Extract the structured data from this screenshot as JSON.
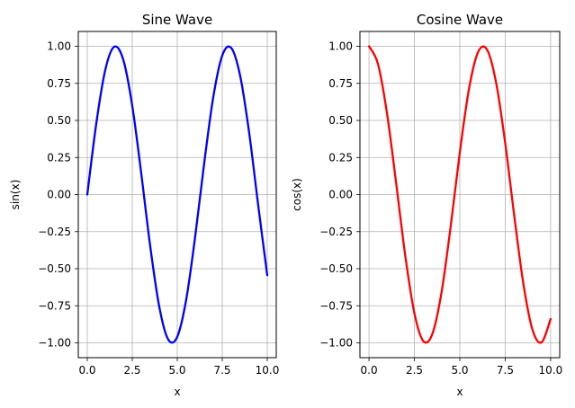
{
  "chart_data": [
    {
      "type": "line",
      "title": "Sine Wave",
      "xlabel": "x",
      "ylabel": "sin(x)",
      "xlim": [
        -0.5,
        10.5
      ],
      "ylim": [
        -1.1,
        1.1
      ],
      "grid": true,
      "x_ticks": [
        0.0,
        2.5,
        5.0,
        7.5,
        10.0
      ],
      "x_tick_labels": [
        "0.0",
        "2.5",
        "5.0",
        "7.5",
        "10.0"
      ],
      "y_ticks": [
        1.0,
        0.75,
        0.5,
        0.25,
        0.0,
        -0.25,
        -0.5,
        -0.75,
        -1.0
      ],
      "y_tick_labels": [
        "1.00",
        "0.75",
        "0.50",
        "0.25",
        "0.00",
        "−0.25",
        "−0.50",
        "−0.75",
        "−1.00"
      ],
      "series": [
        {
          "name": "sin(x)",
          "color": "#0000ff",
          "x": [
            0.0,
            0.5,
            1.0,
            1.5,
            2.0,
            2.5,
            3.0,
            3.5,
            4.0,
            4.5,
            5.0,
            5.5,
            6.0,
            6.5,
            7.0,
            7.5,
            8.0,
            8.5,
            9.0,
            9.5,
            10.0
          ],
          "y": [
            0.0,
            0.479,
            0.841,
            0.997,
            0.909,
            0.598,
            0.141,
            -0.351,
            -0.757,
            -0.978,
            -0.959,
            -0.706,
            -0.279,
            0.215,
            0.657,
            0.938,
            0.989,
            0.798,
            0.412,
            -0.075,
            -0.544
          ]
        }
      ]
    },
    {
      "type": "line",
      "title": "Cosine Wave",
      "xlabel": "x",
      "ylabel": "cos(x)",
      "xlim": [
        -0.5,
        10.5
      ],
      "ylim": [
        -1.1,
        1.1
      ],
      "grid": true,
      "x_ticks": [
        0.0,
        2.5,
        5.0,
        7.5,
        10.0
      ],
      "x_tick_labels": [
        "0.0",
        "2.5",
        "5.0",
        "7.5",
        "10.0"
      ],
      "y_ticks": [
        1.0,
        0.75,
        0.5,
        0.25,
        0.0,
        -0.25,
        -0.5,
        -0.75,
        -1.0
      ],
      "y_tick_labels": [
        "1.00",
        "0.75",
        "0.50",
        "0.25",
        "0.00",
        "−0.25",
        "−0.50",
        "−0.75",
        "−1.00"
      ],
      "series": [
        {
          "name": "cos(x)",
          "color": "#ff0000",
          "x": [
            0.0,
            0.5,
            1.0,
            1.5,
            2.0,
            2.5,
            3.0,
            3.5,
            4.0,
            4.5,
            5.0,
            5.5,
            6.0,
            6.5,
            7.0,
            7.5,
            8.0,
            8.5,
            9.0,
            9.5,
            10.0
          ],
          "y": [
            1.0,
            0.878,
            0.54,
            0.071,
            -0.416,
            -0.801,
            -0.99,
            -0.936,
            -0.654,
            -0.211,
            0.284,
            0.709,
            0.96,
            0.977,
            0.754,
            0.347,
            -0.146,
            -0.602,
            -0.911,
            -0.997,
            -0.839
          ]
        }
      ]
    }
  ]
}
